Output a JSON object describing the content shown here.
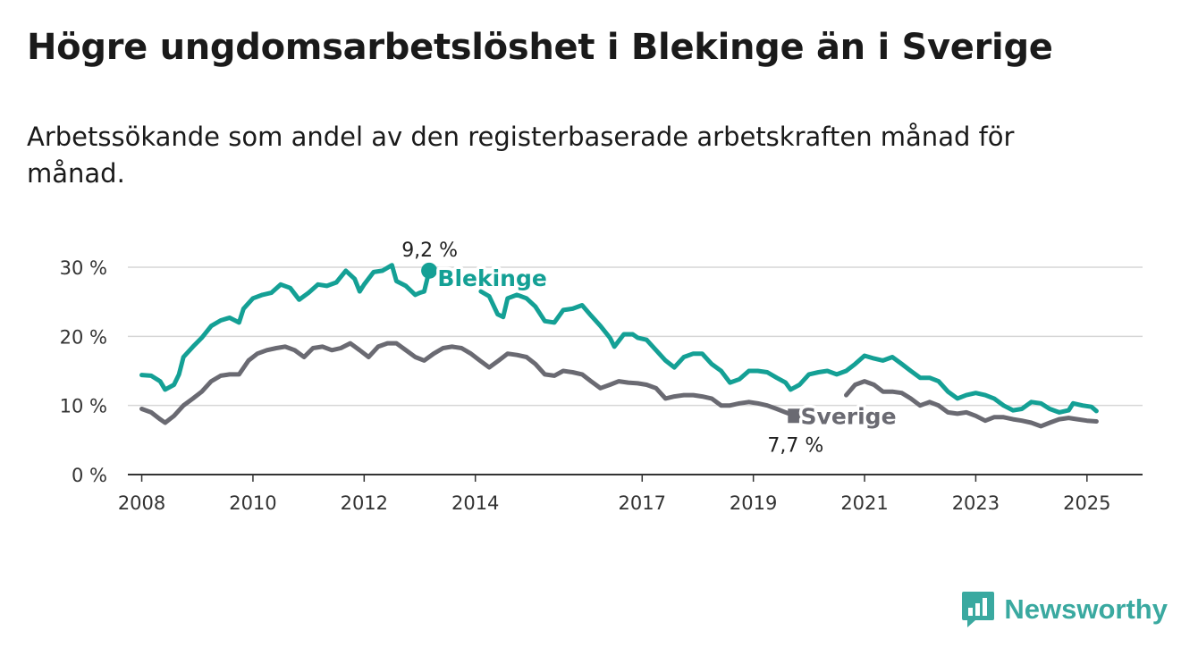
{
  "title": "Högre ungdomsarbetslöshet i Blekinge än i Sverige",
  "subtitle": "Arbetssökande som andel av den registerbaserade arbetskraften månad för månad.",
  "brand": {
    "name": "Newsworthy",
    "icon": "bar-chart-speech-bubble-icon",
    "color": "#3aa9a0"
  },
  "chart_data": {
    "type": "line",
    "x_unit": "year",
    "xlim": [
      2007.75,
      2026.0
    ],
    "ylim": [
      0,
      30
    ],
    "y_ticks": [
      0,
      10,
      20,
      30
    ],
    "y_tick_labels": [
      "0 %",
      "10 %",
      "20 %",
      "30 %"
    ],
    "x_ticks": [
      2008,
      2010,
      2012,
      2014,
      2017,
      2019,
      2021,
      2023,
      2025
    ],
    "x_tick_labels": [
      "2008",
      "2010",
      "2012",
      "2014",
      "2017",
      "2019",
      "2021",
      "2023",
      "2025"
    ],
    "grid": "horizontal",
    "legend": "inline labels on lines",
    "series": [
      {
        "name": "Blekinge",
        "color": "#14a095",
        "end_label": "9,2 %",
        "points": [
          [
            2008.0,
            14.4
          ],
          [
            2008.17,
            14.3
          ],
          [
            2008.33,
            13.5
          ],
          [
            2008.42,
            12.3
          ],
          [
            2008.58,
            13.0
          ],
          [
            2008.67,
            14.5
          ],
          [
            2008.75,
            17.0
          ],
          [
            2008.92,
            18.5
          ],
          [
            2009.08,
            19.8
          ],
          [
            2009.25,
            21.5
          ],
          [
            2009.42,
            22.3
          ],
          [
            2009.58,
            22.7
          ],
          [
            2009.75,
            22.0
          ],
          [
            2009.83,
            24.0
          ],
          [
            2010.0,
            25.5
          ],
          [
            2010.17,
            26.0
          ],
          [
            2010.33,
            26.3
          ],
          [
            2010.5,
            27.5
          ],
          [
            2010.67,
            27.0
          ],
          [
            2010.83,
            25.3
          ],
          [
            2011.0,
            26.3
          ],
          [
            2011.17,
            27.5
          ],
          [
            2011.33,
            27.3
          ],
          [
            2011.5,
            27.8
          ],
          [
            2011.67,
            29.5
          ],
          [
            2011.83,
            28.3
          ],
          [
            2011.92,
            26.5
          ],
          [
            2012.0,
            27.5
          ],
          [
            2012.17,
            29.3
          ],
          [
            2012.33,
            29.5
          ],
          [
            2012.5,
            30.3
          ],
          [
            2012.58,
            28.0
          ],
          [
            2012.75,
            27.3
          ],
          [
            2012.92,
            26.0
          ],
          [
            2013.0,
            26.3
          ],
          [
            2013.08,
            26.5
          ],
          [
            2013.17,
            29.5
          ]
        ]
      },
      {
        "name": "Blekinge",
        "color": "#14a095",
        "points": [
          [
            2014.1,
            26.5
          ],
          [
            2014.25,
            25.8
          ],
          [
            2014.4,
            23.2
          ],
          [
            2014.5,
            22.8
          ],
          [
            2014.58,
            25.5
          ],
          [
            2014.75,
            26.0
          ],
          [
            2014.92,
            25.5
          ],
          [
            2015.08,
            24.3
          ],
          [
            2015.25,
            22.2
          ],
          [
            2015.42,
            22.0
          ],
          [
            2015.58,
            23.8
          ],
          [
            2015.75,
            24.0
          ],
          [
            2015.92,
            24.5
          ],
          [
            2016.08,
            23.0
          ],
          [
            2016.25,
            21.5
          ],
          [
            2016.42,
            19.8
          ],
          [
            2016.5,
            18.5
          ],
          [
            2016.67,
            20.3
          ],
          [
            2016.83,
            20.3
          ],
          [
            2016.92,
            19.8
          ],
          [
            2017.08,
            19.5
          ],
          [
            2017.25,
            18.0
          ],
          [
            2017.42,
            16.5
          ],
          [
            2017.58,
            15.5
          ],
          [
            2017.75,
            17.0
          ],
          [
            2017.92,
            17.5
          ],
          [
            2018.08,
            17.5
          ],
          [
            2018.25,
            16.0
          ],
          [
            2018.42,
            15.0
          ],
          [
            2018.58,
            13.3
          ],
          [
            2018.75,
            13.8
          ],
          [
            2018.92,
            15.0
          ],
          [
            2019.08,
            15.0
          ],
          [
            2019.25,
            14.8
          ],
          [
            2019.42,
            14.0
          ],
          [
            2019.58,
            13.3
          ],
          [
            2019.67,
            12.3
          ],
          [
            2019.83,
            13.0
          ],
          [
            2020.0,
            14.5
          ],
          [
            2020.17,
            14.8
          ],
          [
            2020.33,
            15.0
          ],
          [
            2020.5,
            14.5
          ],
          [
            2020.67,
            15.0
          ],
          [
            2020.83,
            16.0
          ],
          [
            2021.0,
            17.2
          ],
          [
            2021.17,
            16.8
          ],
          [
            2021.33,
            16.5
          ],
          [
            2021.5,
            17.0
          ],
          [
            2021.67,
            16.0
          ],
          [
            2021.83,
            15.0
          ],
          [
            2022.0,
            14.0
          ],
          [
            2022.17,
            14.0
          ],
          [
            2022.33,
            13.5
          ],
          [
            2022.5,
            12.0
          ],
          [
            2022.67,
            11.0
          ],
          [
            2022.83,
            11.5
          ],
          [
            2023.0,
            11.8
          ],
          [
            2023.17,
            11.5
          ],
          [
            2023.33,
            11.0
          ],
          [
            2023.5,
            10.0
          ],
          [
            2023.67,
            9.3
          ],
          [
            2023.83,
            9.5
          ],
          [
            2024.0,
            10.5
          ],
          [
            2024.17,
            10.3
          ],
          [
            2024.33,
            9.5
          ],
          [
            2024.5,
            9.0
          ],
          [
            2024.67,
            9.3
          ],
          [
            2024.75,
            10.3
          ],
          [
            2024.92,
            10.0
          ],
          [
            2025.08,
            9.8
          ],
          [
            2025.17,
            9.2
          ]
        ]
      },
      {
        "name": "Sverige",
        "color": "#6a6a72",
        "end_label": "7,7 %",
        "points": [
          [
            2008.0,
            9.5
          ],
          [
            2008.17,
            9.0
          ],
          [
            2008.33,
            8.0
          ],
          [
            2008.42,
            7.5
          ],
          [
            2008.58,
            8.5
          ],
          [
            2008.75,
            10.0
          ],
          [
            2008.92,
            11.0
          ],
          [
            2009.08,
            12.0
          ],
          [
            2009.25,
            13.5
          ],
          [
            2009.42,
            14.3
          ],
          [
            2009.58,
            14.5
          ],
          [
            2009.75,
            14.5
          ],
          [
            2009.92,
            16.5
          ],
          [
            2010.08,
            17.5
          ],
          [
            2010.25,
            18.0
          ],
          [
            2010.42,
            18.3
          ],
          [
            2010.58,
            18.5
          ],
          [
            2010.75,
            18.0
          ],
          [
            2010.92,
            17.0
          ],
          [
            2011.08,
            18.3
          ],
          [
            2011.25,
            18.5
          ],
          [
            2011.42,
            18.0
          ],
          [
            2011.58,
            18.3
          ],
          [
            2011.75,
            19.0
          ],
          [
            2011.92,
            18.0
          ],
          [
            2012.08,
            17.0
          ],
          [
            2012.25,
            18.5
          ],
          [
            2012.42,
            19.0
          ],
          [
            2012.58,
            19.0
          ],
          [
            2012.75,
            18.0
          ],
          [
            2012.92,
            17.0
          ],
          [
            2013.08,
            16.5
          ],
          [
            2013.25,
            17.5
          ],
          [
            2013.42,
            18.3
          ],
          [
            2013.58,
            18.5
          ],
          [
            2013.75,
            18.3
          ],
          [
            2013.92,
            17.5
          ],
          [
            2014.08,
            16.5
          ],
          [
            2014.25,
            15.5
          ],
          [
            2014.42,
            16.5
          ],
          [
            2014.58,
            17.5
          ],
          [
            2014.75,
            17.3
          ],
          [
            2014.92,
            17.0
          ],
          [
            2015.08,
            16.0
          ],
          [
            2015.25,
            14.5
          ],
          [
            2015.42,
            14.3
          ],
          [
            2015.58,
            15.0
          ],
          [
            2015.75,
            14.8
          ],
          [
            2015.92,
            14.5
          ],
          [
            2016.08,
            13.5
          ],
          [
            2016.25,
            12.5
          ],
          [
            2016.42,
            13.0
          ],
          [
            2016.58,
            13.5
          ],
          [
            2016.75,
            13.3
          ],
          [
            2016.92,
            13.2
          ],
          [
            2017.08,
            13.0
          ],
          [
            2017.25,
            12.5
          ],
          [
            2017.42,
            11.0
          ],
          [
            2017.58,
            11.3
          ],
          [
            2017.75,
            11.5
          ],
          [
            2017.92,
            11.5
          ],
          [
            2018.08,
            11.3
          ],
          [
            2018.25,
            11.0
          ],
          [
            2018.42,
            10.0
          ],
          [
            2018.58,
            10.0
          ],
          [
            2018.75,
            10.3
          ],
          [
            2018.92,
            10.5
          ],
          [
            2019.08,
            10.3
          ],
          [
            2019.25,
            10.0
          ],
          [
            2019.42,
            9.5
          ],
          [
            2019.58,
            9.0
          ],
          [
            2019.75,
            8.5
          ]
        ]
      },
      {
        "name": "Sverige",
        "color": "#6a6a72",
        "points": [
          [
            2020.67,
            11.5
          ],
          [
            2020.83,
            13.0
          ],
          [
            2021.0,
            13.5
          ],
          [
            2021.17,
            13.0
          ],
          [
            2021.33,
            12.0
          ],
          [
            2021.5,
            12.0
          ],
          [
            2021.67,
            11.8
          ],
          [
            2021.83,
            11.0
          ],
          [
            2022.0,
            10.0
          ],
          [
            2022.17,
            10.5
          ],
          [
            2022.33,
            10.0
          ],
          [
            2022.5,
            9.0
          ],
          [
            2022.67,
            8.8
          ],
          [
            2022.83,
            9.0
          ],
          [
            2023.0,
            8.5
          ],
          [
            2023.17,
            7.8
          ],
          [
            2023.33,
            8.3
          ],
          [
            2023.5,
            8.3
          ],
          [
            2023.67,
            8.0
          ],
          [
            2023.83,
            7.8
          ],
          [
            2024.0,
            7.5
          ],
          [
            2024.17,
            7.0
          ],
          [
            2024.33,
            7.5
          ],
          [
            2024.5,
            8.0
          ],
          [
            2024.67,
            8.2
          ],
          [
            2024.83,
            8.0
          ],
          [
            2025.0,
            7.8
          ],
          [
            2025.17,
            7.7
          ]
        ]
      }
    ]
  }
}
